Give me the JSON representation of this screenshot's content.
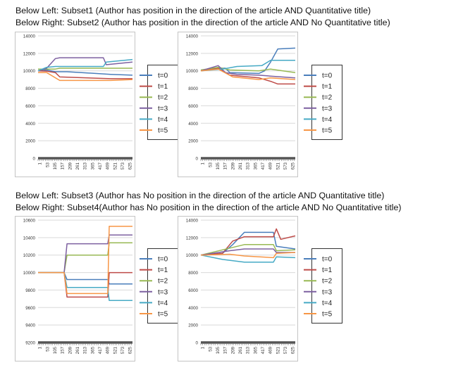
{
  "captions": {
    "top_line1": "Below Left: Subset1 (Author has position in the direction of the article  AND  Quantitative title)",
    "top_line2": "Below Right: Subset2 (Author has position in the direction of the article  AND  No Quantitative title)",
    "bottom_line1": "Below Left: Subset3 (Author has No position in the direction of the article AND  Quantitative title)",
    "bottom_line2": "Below Right: Subset4(Author has No position in the direction of the article AND  No Quantitative title)"
  },
  "legend": {
    "labels": [
      "t=0",
      "t=1",
      "t=2",
      "t=3",
      "t=4",
      "t=5"
    ],
    "colors": [
      "#4a7ebb",
      "#be4b48",
      "#98b954",
      "#7d60a0",
      "#46aac5",
      "#f79646"
    ]
  },
  "chart_data": [
    {
      "type": "line",
      "title": "Subset1",
      "x_ticks": [
        "1",
        "53",
        "105",
        "157",
        "209",
        "261",
        "313",
        "365",
        "417",
        "469",
        "521",
        "573",
        "625"
      ],
      "xlim": [
        1,
        650
      ],
      "y_ticks": [
        "0",
        "2000",
        "4000",
        "6000",
        "8000",
        "10000",
        "12000",
        "14000"
      ],
      "ylim": [
        0,
        14000
      ],
      "series": [
        {
          "name": "t=0",
          "points": [
            [
              1,
              10000
            ],
            [
              60,
              10100
            ],
            [
              120,
              9900
            ],
            [
              200,
              9900
            ],
            [
              500,
              9600
            ],
            [
              650,
              9500
            ]
          ]
        },
        {
          "name": "t=1",
          "points": [
            [
              1,
              10000
            ],
            [
              60,
              9950
            ],
            [
              120,
              9800
            ],
            [
              150,
              9300
            ],
            [
              500,
              9100
            ],
            [
              650,
              9100
            ]
          ]
        },
        {
          "name": "t=2",
          "points": [
            [
              1,
              10200
            ],
            [
              120,
              10200
            ],
            [
              150,
              10300
            ],
            [
              500,
              10300
            ],
            [
              650,
              10300
            ]
          ]
        },
        {
          "name": "t=3",
          "points": [
            [
              1,
              10000
            ],
            [
              60,
              10300
            ],
            [
              120,
              11400
            ],
            [
              150,
              11500
            ],
            [
              450,
              11500
            ],
            [
              470,
              10700
            ],
            [
              650,
              11000
            ]
          ]
        },
        {
          "name": "t=4",
          "points": [
            [
              1,
              10000
            ],
            [
              60,
              10400
            ],
            [
              120,
              10500
            ],
            [
              450,
              10500
            ],
            [
              470,
              11000
            ],
            [
              650,
              11300
            ]
          ]
        },
        {
          "name": "t=5",
          "points": [
            [
              1,
              9800
            ],
            [
              60,
              9800
            ],
            [
              150,
              8900
            ],
            [
              500,
              8900
            ],
            [
              650,
              9000
            ]
          ]
        }
      ]
    },
    {
      "type": "line",
      "title": "Subset2",
      "x_ticks": [
        "1",
        "53",
        "105",
        "157",
        "209",
        "261",
        "313",
        "365",
        "417",
        "469",
        "521",
        "573",
        "625"
      ],
      "xlim": [
        1,
        650
      ],
      "y_ticks": [
        "0",
        "2000",
        "4000",
        "6000",
        "8000",
        "10000",
        "12000",
        "14000"
      ],
      "ylim": [
        0,
        14000
      ],
      "series": [
        {
          "name": "t=0",
          "points": [
            [
              1,
              10000
            ],
            [
              100,
              10300
            ],
            [
              170,
              10300
            ],
            [
              200,
              9800
            ],
            [
              400,
              9700
            ],
            [
              440,
              10000
            ],
            [
              480,
              11000
            ],
            [
              530,
              12500
            ],
            [
              650,
              12600
            ]
          ]
        },
        {
          "name": "t=1",
          "points": [
            [
              1,
              10000
            ],
            [
              120,
              10300
            ],
            [
              200,
              9500
            ],
            [
              400,
              9200
            ],
            [
              480,
              8800
            ],
            [
              530,
              8500
            ],
            [
              650,
              8500
            ]
          ]
        },
        {
          "name": "t=2",
          "points": [
            [
              1,
              10100
            ],
            [
              120,
              10400
            ],
            [
              200,
              10100
            ],
            [
              400,
              10000
            ],
            [
              480,
              10200
            ],
            [
              650,
              9800
            ]
          ]
        },
        {
          "name": "t=3",
          "points": [
            [
              1,
              10000
            ],
            [
              120,
              10600
            ],
            [
              170,
              9800
            ],
            [
              250,
              9600
            ],
            [
              400,
              9500
            ],
            [
              480,
              9400
            ],
            [
              650,
              9200
            ]
          ]
        },
        {
          "name": "t=4",
          "points": [
            [
              1,
              10000
            ],
            [
              150,
              10200
            ],
            [
              250,
              10500
            ],
            [
              420,
              10600
            ],
            [
              480,
              11200
            ],
            [
              650,
              11200
            ]
          ]
        },
        {
          "name": "t=5",
          "points": [
            [
              1,
              10000
            ],
            [
              120,
              10200
            ],
            [
              220,
              9300
            ],
            [
              400,
              9000
            ],
            [
              480,
              9200
            ],
            [
              650,
              9000
            ]
          ]
        }
      ]
    },
    {
      "type": "line",
      "title": "Subset3",
      "x_ticks": [
        "1",
        "53",
        "105",
        "157",
        "209",
        "261",
        "313",
        "365",
        "417",
        "469",
        "521",
        "573",
        "625"
      ],
      "xlim": [
        1,
        650
      ],
      "y_ticks": [
        "9200",
        "9400",
        "9600",
        "9800",
        "10000",
        "10200",
        "10400",
        "10600"
      ],
      "ylim": [
        9200,
        10600
      ],
      "series": [
        {
          "name": "t=0",
          "points": [
            [
              1,
              10000
            ],
            [
              180,
              10000
            ],
            [
              200,
              9920
            ],
            [
              480,
              9920
            ],
            [
              490,
              9870
            ],
            [
              650,
              9870
            ]
          ]
        },
        {
          "name": "t=1",
          "points": [
            [
              1,
              10000
            ],
            [
              180,
              10000
            ],
            [
              200,
              9720
            ],
            [
              480,
              9720
            ],
            [
              490,
              10000
            ],
            [
              650,
              10000
            ]
          ]
        },
        {
          "name": "t=2",
          "points": [
            [
              1,
              10000
            ],
            [
              180,
              10000
            ],
            [
              200,
              10200
            ],
            [
              480,
              10200
            ],
            [
              490,
              10340
            ],
            [
              650,
              10340
            ]
          ]
        },
        {
          "name": "t=3",
          "points": [
            [
              1,
              10000
            ],
            [
              180,
              10000
            ],
            [
              200,
              10330
            ],
            [
              480,
              10330
            ],
            [
              490,
              10430
            ],
            [
              650,
              10430
            ]
          ]
        },
        {
          "name": "t=4",
          "points": [
            [
              1,
              10000
            ],
            [
              180,
              10000
            ],
            [
              200,
              9830
            ],
            [
              480,
              9830
            ],
            [
              490,
              9680
            ],
            [
              650,
              9680
            ]
          ]
        },
        {
          "name": "t=5",
          "points": [
            [
              1,
              10000
            ],
            [
              180,
              10000
            ],
            [
              200,
              9760
            ],
            [
              480,
              9760
            ],
            [
              490,
              10530
            ],
            [
              650,
              10530
            ]
          ]
        }
      ]
    },
    {
      "type": "line",
      "title": "Subset4",
      "x_ticks": [
        "1",
        "53",
        "105",
        "157",
        "209",
        "261",
        "313",
        "365",
        "417",
        "469",
        "521",
        "573",
        "625"
      ],
      "xlim": [
        1,
        650
      ],
      "y_ticks": [
        "0",
        "2000",
        "4000",
        "6000",
        "8000",
        "10000",
        "12000",
        "14000"
      ],
      "ylim": [
        0,
        14000
      ],
      "series": [
        {
          "name": "t=0",
          "points": [
            [
              1,
              10000
            ],
            [
              150,
              10200
            ],
            [
              220,
              11200
            ],
            [
              300,
              12600
            ],
            [
              500,
              12600
            ],
            [
              520,
              11000
            ],
            [
              650,
              10700
            ]
          ]
        },
        {
          "name": "t=1",
          "points": [
            [
              1,
              10000
            ],
            [
              150,
              10200
            ],
            [
              220,
              11600
            ],
            [
              300,
              12100
            ],
            [
              500,
              12100
            ],
            [
              520,
              13000
            ],
            [
              550,
              11800
            ],
            [
              650,
              12200
            ]
          ]
        },
        {
          "name": "t=2",
          "points": [
            [
              1,
              10000
            ],
            [
              200,
              10800
            ],
            [
              300,
              11200
            ],
            [
              500,
              11200
            ],
            [
              520,
              10500
            ],
            [
              650,
              10600
            ]
          ]
        },
        {
          "name": "t=3",
          "points": [
            [
              1,
              10000
            ],
            [
              200,
              10500
            ],
            [
              300,
              10700
            ],
            [
              500,
              10700
            ],
            [
              520,
              10300
            ],
            [
              650,
              10300
            ]
          ]
        },
        {
          "name": "t=4",
          "points": [
            [
              1,
              10000
            ],
            [
              150,
              9500
            ],
            [
              300,
              9200
            ],
            [
              500,
              9200
            ],
            [
              520,
              9800
            ],
            [
              650,
              9700
            ]
          ]
        },
        {
          "name": "t=5",
          "points": [
            [
              1,
              10000
            ],
            [
              200,
              10100
            ],
            [
              300,
              9900
            ],
            [
              500,
              9700
            ],
            [
              520,
              10200
            ],
            [
              650,
              10300
            ]
          ]
        }
      ]
    }
  ]
}
